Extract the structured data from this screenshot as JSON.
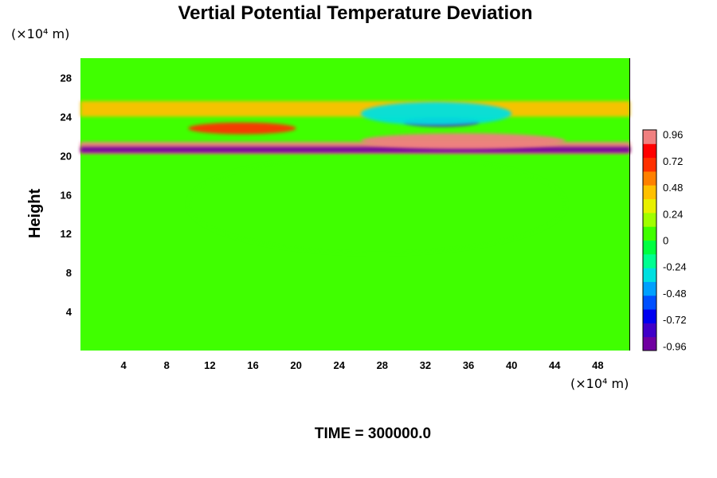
{
  "chart_data": {
    "type": "heatmap",
    "title": "Vertial Potential Temperature Deviation",
    "ylabel": "Height",
    "xlabel": "",
    "y_unit": "(×10⁴ m)",
    "x_unit": "(×10⁴ m)",
    "xlim": [
      0,
      51
    ],
    "ylim": [
      0,
      30
    ],
    "x_ticks": [
      4,
      8,
      12,
      16,
      20,
      24,
      28,
      32,
      36,
      40,
      44,
      48
    ],
    "y_ticks": [
      4,
      8,
      12,
      16,
      20,
      24,
      28
    ],
    "colorbar": {
      "min": -1.0,
      "max": 1.0,
      "tick_labels": [
        "0.96",
        "0.72",
        "0.48",
        "0.24",
        "0",
        "-0.24",
        "-0.48",
        "-0.72",
        "-0.96"
      ],
      "colors": [
        "#7000a0",
        "#4000c8",
        "#0000f0",
        "#0050ff",
        "#00a0ff",
        "#00e0e0",
        "#00ff90",
        "#00ff40",
        "#40ff00",
        "#a0ff00",
        "#e8f000",
        "#ffc000",
        "#ff8000",
        "#ff3000",
        "#ff0000",
        "#f08080"
      ]
    },
    "background_value": 0.0,
    "features": [
      {
        "name": "upper pink band",
        "x_range": [
          0,
          51
        ],
        "y_center": 20.8,
        "y_halfwidth": 0.6,
        "value": 0.96
      },
      {
        "name": "dark blue band",
        "x_range": [
          0,
          51
        ],
        "y_center": 20.6,
        "y_halfwidth": 0.3,
        "value": -0.96
      },
      {
        "name": "central pink lens",
        "x_range": [
          26,
          45
        ],
        "y_center": 21.5,
        "y_halfwidth": 0.8,
        "value": 0.96
      },
      {
        "name": "upper left red patch",
        "x_range": [
          10,
          20
        ],
        "y_center": 22.8,
        "y_halfwidth": 0.6,
        "value": 0.72
      },
      {
        "name": "upper blue patch",
        "x_range": [
          30,
          37
        ],
        "y_center": 23.5,
        "y_halfwidth": 0.5,
        "value": -0.96
      },
      {
        "name": "yellow stripe top",
        "x_range": [
          0,
          51
        ],
        "y_center": 24.8,
        "y_halfwidth": 0.8,
        "value": 0.4
      },
      {
        "name": "cyan patch",
        "x_range": [
          26,
          40
        ],
        "y_center": 24.3,
        "y_halfwidth": 1.2,
        "value": -0.3
      },
      {
        "name": "light green swirls",
        "x_range": [
          10,
          45
        ],
        "y_center": 15.0,
        "y_halfwidth": 5.0,
        "value": 0.1
      }
    ]
  },
  "footer": {
    "time_label": "TIME = 300000.0"
  }
}
